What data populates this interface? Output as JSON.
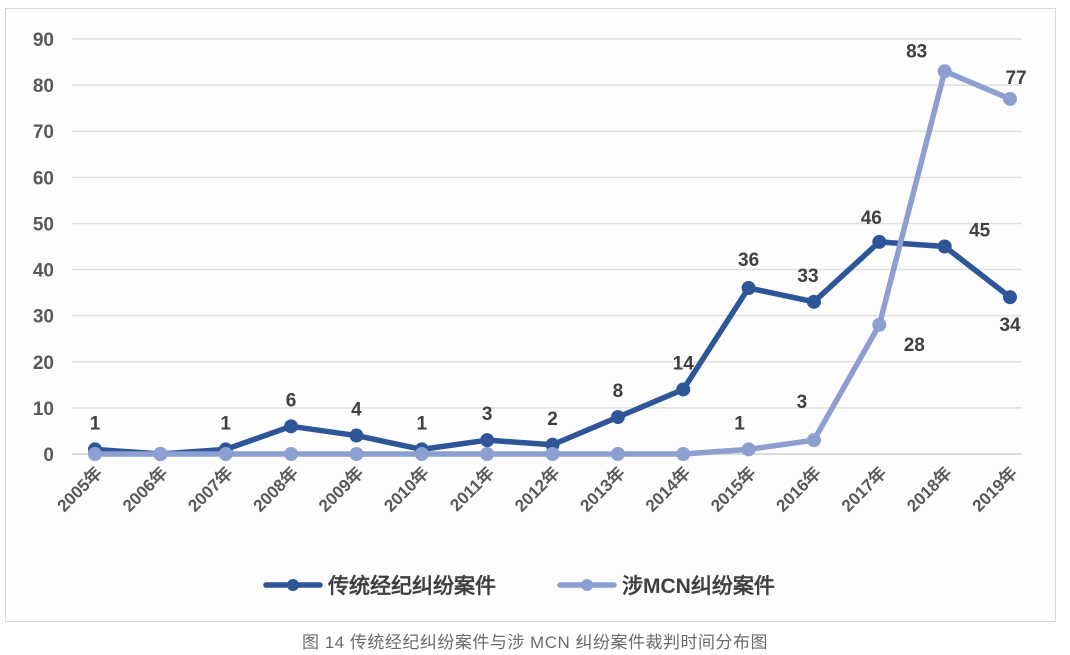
{
  "chart_data": {
    "type": "line",
    "title": "",
    "xlabel": "",
    "ylabel": "",
    "ylim": [
      0,
      90
    ],
    "yticks": [
      0,
      10,
      20,
      30,
      40,
      50,
      60,
      70,
      80,
      90
    ],
    "grid": true,
    "legend_position": "bottom",
    "categories": [
      "2005年",
      "2006年",
      "2007年",
      "2008年",
      "2009年",
      "2010年",
      "2011年",
      "2012年",
      "2013年",
      "2014年",
      "2015年",
      "2016年",
      "2017年",
      "2018年",
      "2019年"
    ],
    "series": [
      {
        "name": "传统经纪纠纷案件",
        "color": "#2E5597",
        "values": [
          1,
          0,
          1,
          6,
          4,
          1,
          3,
          2,
          8,
          14,
          36,
          33,
          46,
          45,
          34
        ],
        "labels": [
          "1",
          "",
          "1",
          "6",
          "4",
          "1",
          "3",
          "2",
          "8",
          "14",
          "36",
          "33",
          "46",
          "45",
          "34"
        ]
      },
      {
        "name": "涉MCN纠纷案件",
        "color": "#8C9FD0",
        "values": [
          0,
          0,
          0,
          0,
          0,
          0,
          0,
          0,
          0,
          0,
          1,
          3,
          28,
          83,
          77
        ],
        "labels": [
          "",
          "",
          "",
          "",
          "",
          "",
          "",
          "",
          "",
          "",
          "1",
          "3",
          "28",
          "83",
          "77"
        ]
      }
    ]
  },
  "caption": "图 14  传统经纪纠纷案件与涉 MCN 纠纷案件裁判时间分布图"
}
